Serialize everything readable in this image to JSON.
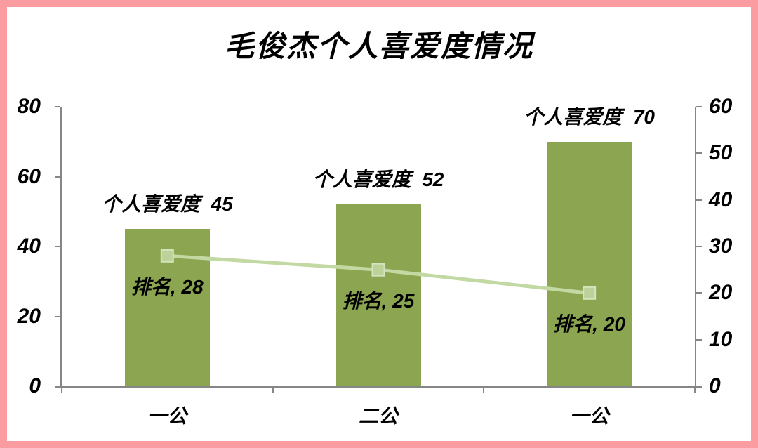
{
  "page": {
    "background": "#FFFFFF",
    "border_color": "#FA9CA0"
  },
  "chart_data": {
    "type": "bar",
    "title": "毛俊杰个人喜爱度情况",
    "categories": [
      "一公",
      "二公",
      "一公"
    ],
    "series": [
      {
        "name": "个人喜爱度",
        "chart_type": "bar",
        "axis": "left",
        "values": [
          45,
          52,
          70
        ],
        "data_labels": [
          "个人喜爱度  45",
          "个人喜爱度  52",
          "个人喜爱度  70"
        ],
        "color": "#8BA551"
      },
      {
        "name": "排名",
        "chart_type": "line",
        "axis": "right",
        "values": [
          28,
          25,
          20
        ],
        "data_labels": [
          "排名, 28",
          "排名, 25",
          "排名, 20"
        ],
        "color": "#C3D9A3",
        "marker": "square",
        "marker_fill": "#BCD29A",
        "marker_border": "#D5E3BE"
      }
    ],
    "left_axis": {
      "min": 0,
      "max": 80,
      "step": 20,
      "tick_labels": [
        "80",
        "60",
        "40",
        "20",
        "0"
      ]
    },
    "right_axis": {
      "min": 0,
      "max": 60,
      "step": 10,
      "tick_labels": [
        "60",
        "50",
        "40",
        "30",
        "20",
        "10",
        "0"
      ]
    },
    "axis_color": "#868686",
    "text_color": "#000000",
    "grid": false,
    "legend_position": "none"
  }
}
